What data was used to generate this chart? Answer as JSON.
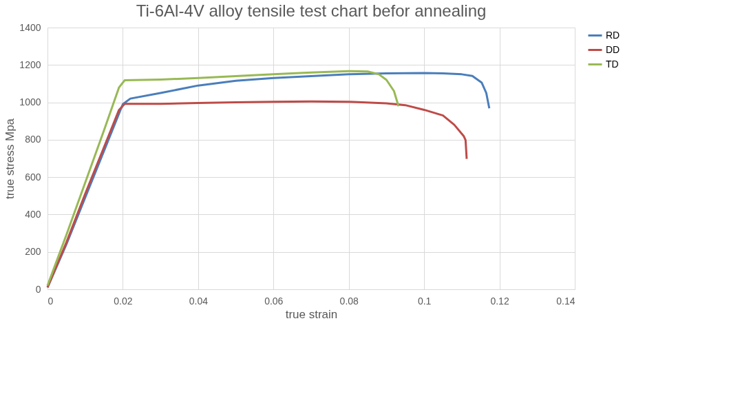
{
  "chart_data": {
    "type": "line",
    "title": "Ti-6Al-4V alloy tensile test chart befor annealing",
    "xlabel": "true strain",
    "ylabel": "true stress Mpa",
    "xlim": [
      0,
      0.14
    ],
    "xticks": [
      0,
      0.02,
      0.04,
      0.06,
      0.08,
      0.1,
      0.12,
      0.14
    ],
    "ylim": [
      0,
      1400
    ],
    "yticks": [
      0,
      200,
      400,
      600,
      800,
      1000,
      1200,
      1400
    ],
    "grid": true,
    "legend": "right",
    "marker": "none",
    "line_style": "solid",
    "series": [
      {
        "name": "RD",
        "color": "#4a7ebb",
        "x": [
          0,
          0.005,
          0.01,
          0.015,
          0.02,
          0.022,
          0.03,
          0.04,
          0.05,
          0.06,
          0.07,
          0.08,
          0.09,
          0.1,
          0.105,
          0.11,
          0.1128,
          0.1153,
          0.1165,
          0.1173
        ],
        "values": [
          10,
          240,
          490,
          740,
          990,
          1020,
          1050,
          1090,
          1115,
          1130,
          1140,
          1150,
          1155,
          1157,
          1155,
          1150,
          1141,
          1105,
          1050,
          968
        ]
      },
      {
        "name": "DD",
        "color": "#be4b48",
        "x": [
          0,
          0.005,
          0.01,
          0.015,
          0.019,
          0.0205,
          0.03,
          0.04,
          0.05,
          0.06,
          0.07,
          0.08,
          0.09,
          0.095,
          0.1,
          0.105,
          0.108,
          0.1105,
          0.111,
          0.1113
        ],
        "values": [
          10,
          250,
          510,
          760,
          960,
          992,
          992,
          997,
          1000,
          1003,
          1005,
          1003,
          995,
          985,
          960,
          930,
          880,
          820,
          798,
          698
        ]
      },
      {
        "name": "TD",
        "color": "#98b954",
        "x": [
          0,
          0.005,
          0.01,
          0.015,
          0.019,
          0.0205,
          0.03,
          0.04,
          0.05,
          0.06,
          0.07,
          0.08,
          0.085,
          0.088,
          0.09,
          0.092,
          0.0932
        ],
        "values": [
          20,
          290,
          570,
          850,
          1080,
          1118,
          1122,
          1130,
          1140,
          1150,
          1160,
          1167,
          1165,
          1150,
          1120,
          1060,
          979
        ]
      }
    ]
  }
}
